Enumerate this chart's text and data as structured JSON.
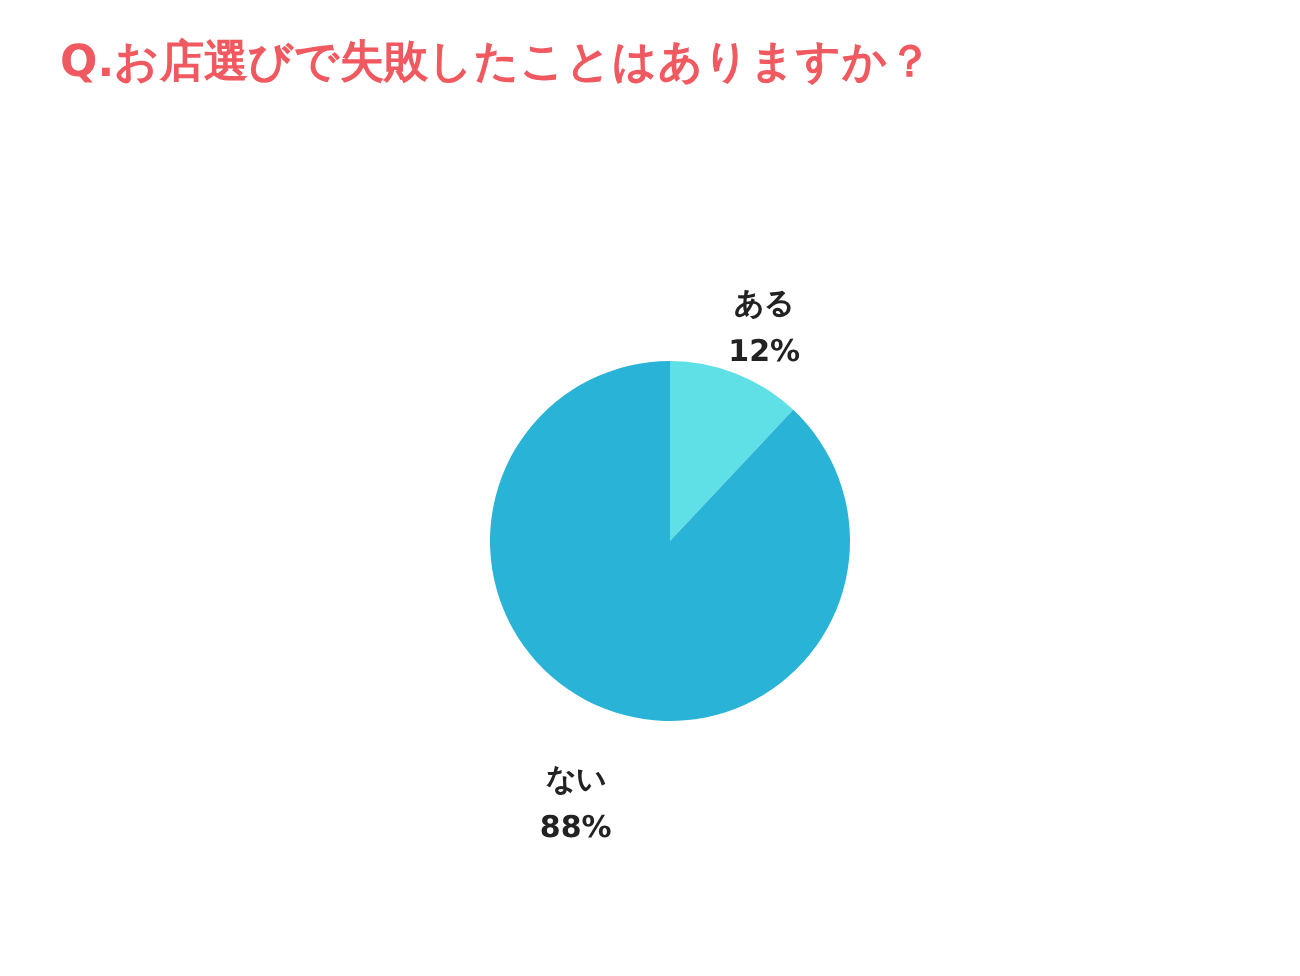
{
  "chart_data": {
    "type": "pie",
    "title": "Q.お店選びで失敗したことはありますか？",
    "categories": [
      "ある",
      "ない"
    ],
    "values": [
      12,
      88
    ],
    "colors": [
      "#5ee0e6",
      "#29b3d6"
    ],
    "value_labels": [
      "12%",
      "88%"
    ],
    "legend": false
  }
}
